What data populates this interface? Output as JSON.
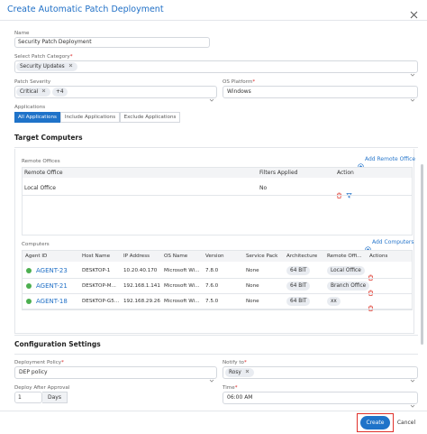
{
  "header": {
    "title": "Create Automatic Patch Deployment"
  },
  "required": "*",
  "form": {
    "name": {
      "label": "Name",
      "value": "Security Patch Deployment"
    },
    "patch_category": {
      "label": "Select Patch Category",
      "chips": [
        "Security Updates"
      ]
    },
    "patch_severity": {
      "label": "Patch Severity",
      "chips": [
        "Critical",
        "+4"
      ]
    },
    "os_platform": {
      "label": "OS Platform",
      "value": "Windows"
    },
    "applications": {
      "label": "Applications",
      "tabs": [
        "All Applications",
        "Include Applications",
        "Exclude Applications"
      ]
    }
  },
  "target": {
    "title": "Target Computers",
    "remote_offices": {
      "label": "Remote Offices",
      "add": "Add Remote Office",
      "columns": [
        "Remote Office",
        "Filters Applied",
        "Action"
      ],
      "rows": [
        [
          "Local Office",
          "No"
        ]
      ]
    },
    "computers": {
      "label": "Computers",
      "add": "Add Computers",
      "columns": [
        "Agent ID",
        "Host Name",
        "IP Address",
        "OS Name",
        "Version",
        "Service Pack",
        "Architecture",
        "Remote Offi...",
        "Actions"
      ],
      "rows": [
        [
          "AGENT-23",
          "DESKTOP-1",
          "10.20.40.170",
          "Microsoft Wi...",
          "7.8.0",
          "None",
          "64 BIT",
          "Local Office"
        ],
        [
          "AGENT-21",
          "DESKTOP-M...",
          "192.168.1.141",
          "Microsoft Wi...",
          "7.6.0",
          "None",
          "64 BIT",
          "Branch Office"
        ],
        [
          "AGENT-18",
          "DESKTOP-G5...",
          "192.168.29.26",
          "Microsoft Wi...",
          "7.5.0",
          "None",
          "64 BIT",
          "xx"
        ]
      ]
    }
  },
  "config": {
    "title": "Configuration Settings",
    "deployment_policy": {
      "label": "Deployment Policy",
      "value": "DEP policy"
    },
    "notify_to": {
      "label": "Notify to",
      "chips": [
        "Rosy"
      ]
    },
    "deploy_after": {
      "label": "Deploy After Approval",
      "value": "1",
      "unit": "Days"
    },
    "time": {
      "label": "Time",
      "value": "06:00 AM"
    }
  },
  "footer": {
    "create": "Create",
    "cancel": "Cancel"
  }
}
